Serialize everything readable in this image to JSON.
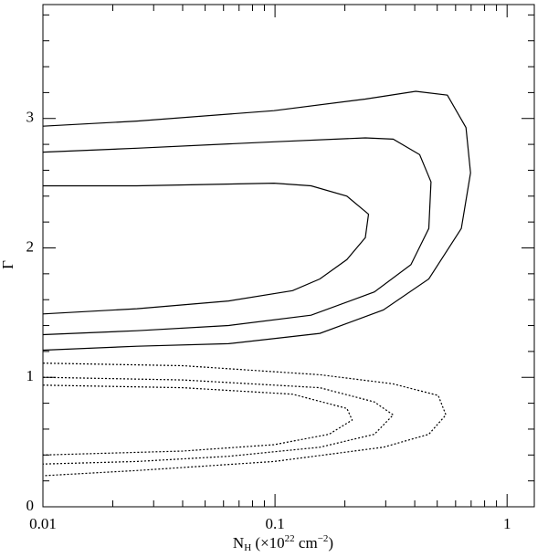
{
  "chart_data": {
    "type": "line",
    "xscale": "log",
    "xlabel": [
      "N",
      "H",
      " (×10",
      "22",
      " cm",
      "−2",
      ")"
    ],
    "ylabel": "Γ",
    "xlim": [
      0.01,
      1.31
    ],
    "ylim": [
      0,
      3.88
    ],
    "xticks": [
      0.01,
      0.1,
      1
    ],
    "xminorticks": [
      0.02,
      0.03,
      0.04,
      0.05,
      0.06,
      0.07,
      0.08,
      0.09,
      0.2,
      0.3,
      0.4,
      0.5,
      0.6,
      0.7,
      0.8,
      0.9
    ],
    "yticks": [
      0,
      1,
      2,
      3
    ],
    "yminorticks": [
      0.2,
      0.4,
      0.6,
      0.8,
      1.2,
      1.4,
      1.6,
      1.8,
      2.2,
      2.4,
      2.6,
      2.8,
      3.2,
      3.4,
      3.6,
      3.8
    ],
    "series": [
      {
        "color": "#000000",
        "dash": "solid",
        "x": [
          0.01,
          0.0254,
          0.099,
          0.245,
          0.404,
          0.553,
          0.665,
          0.696,
          0.635,
          0.46,
          0.293,
          0.156,
          0.0631,
          0.0254,
          0.01
        ],
        "values": [
          2.94,
          2.98,
          3.06,
          3.15,
          3.21,
          3.18,
          2.93,
          2.58,
          2.15,
          1.76,
          1.52,
          1.34,
          1.26,
          1.24,
          1.21
        ]
      },
      {
        "color": "#000000",
        "dash": "solid",
        "x": [
          0.01,
          0.0254,
          0.099,
          0.245,
          0.323,
          0.42,
          0.47,
          0.46,
          0.385,
          0.268,
          0.143,
          0.0631,
          0.0254,
          0.01
        ],
        "values": [
          2.74,
          2.77,
          2.82,
          2.85,
          2.84,
          2.72,
          2.51,
          2.15,
          1.87,
          1.66,
          1.48,
          1.4,
          1.36,
          1.33
        ]
      },
      {
        "color": "#000000",
        "dash": "solid",
        "x": [
          0.01,
          0.0254,
          0.099,
          0.143,
          0.204,
          0.253,
          0.245,
          0.204,
          0.156,
          0.119,
          0.0631,
          0.0254,
          0.01
        ],
        "values": [
          2.48,
          2.48,
          2.5,
          2.48,
          2.4,
          2.26,
          2.08,
          1.91,
          1.76,
          1.67,
          1.59,
          1.53,
          1.49
        ]
      },
      {
        "color": "#000000",
        "dash": "dotted",
        "x": [
          0.01,
          0.04,
          0.156,
          0.322,
          0.505,
          0.545,
          0.46,
          0.293,
          0.099,
          0.0254,
          0.01
        ],
        "values": [
          1.11,
          1.09,
          1.02,
          0.95,
          0.86,
          0.71,
          0.56,
          0.46,
          0.35,
          0.28,
          0.24
        ]
      },
      {
        "color": "#000000",
        "dash": "dotted",
        "x": [
          0.01,
          0.04,
          0.156,
          0.268,
          0.323,
          0.268,
          0.156,
          0.0631,
          0.0254,
          0.01
        ],
        "values": [
          1.0,
          0.98,
          0.92,
          0.81,
          0.71,
          0.56,
          0.46,
          0.39,
          0.35,
          0.33
        ]
      },
      {
        "color": "#000000",
        "dash": "dotted",
        "x": [
          0.01,
          0.04,
          0.119,
          0.204,
          0.215,
          0.171,
          0.099,
          0.04,
          0.01
        ],
        "values": [
          0.94,
          0.92,
          0.87,
          0.76,
          0.67,
          0.56,
          0.48,
          0.43,
          0.4
        ]
      }
    ]
  }
}
